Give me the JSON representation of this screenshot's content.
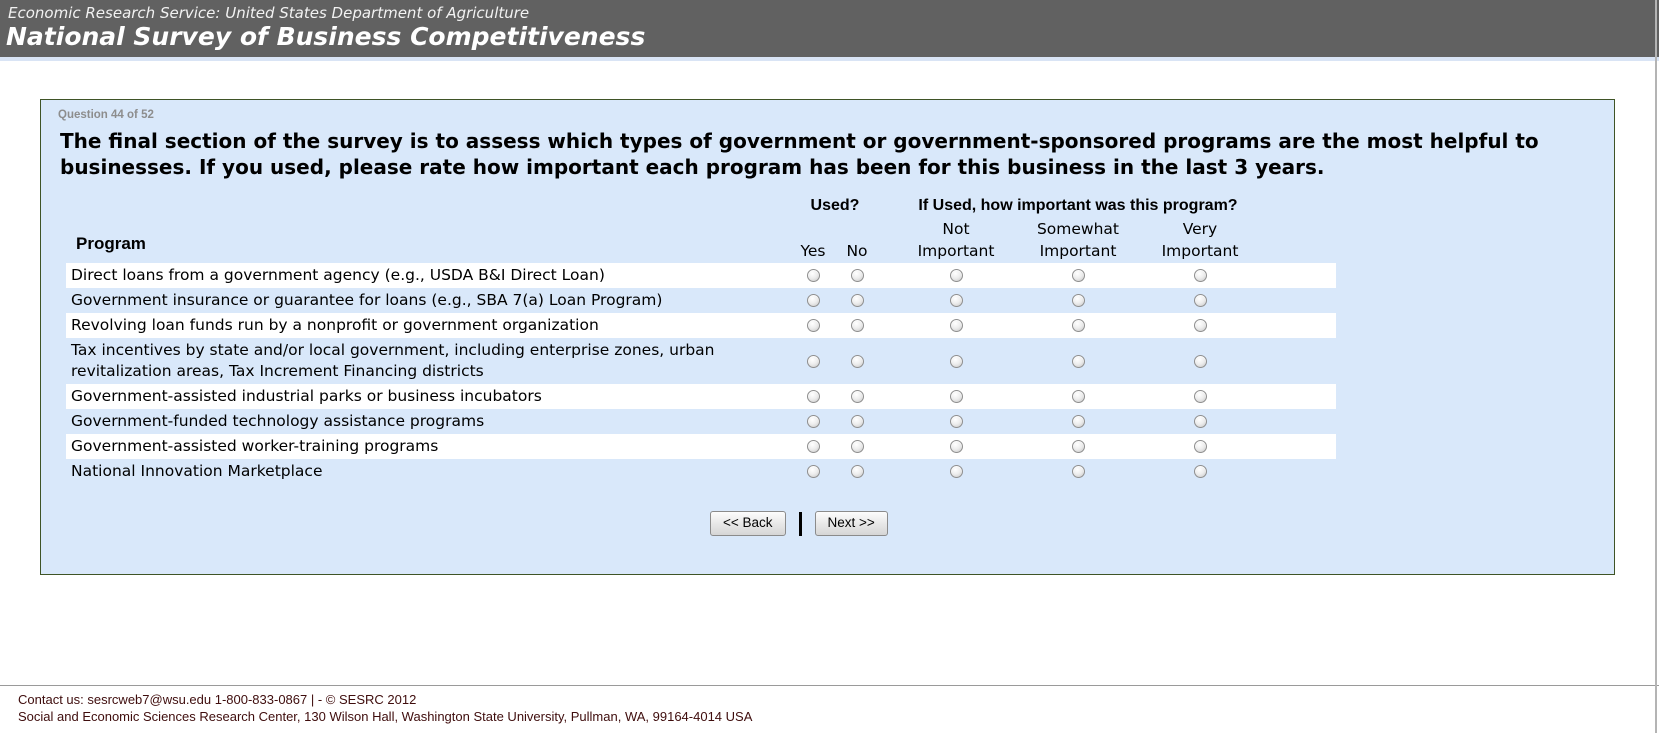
{
  "header": {
    "agency_line": "Economic Research Service: United States Department of Agriculture",
    "title": "National Survey of Business Competitiveness"
  },
  "question": {
    "number_label": "Question 44 of 52",
    "text": "The final section of the survey is to assess which types of government or government-sponsored programs are the most helpful to businesses. If you used, please rate how important each program has been for this business in the last 3 years."
  },
  "table": {
    "program_header": "Program",
    "used_header": "Used?",
    "importance_header": "If Used, how important was this program?",
    "yes_label": "Yes",
    "no_label": "No",
    "importance_options": [
      "Not\nImportant",
      "Somewhat\nImportant",
      "Very\nImportant"
    ],
    "programs": [
      "Direct loans from a government agency (e.g., USDA B&I Direct Loan)",
      "Government insurance or guarantee for loans (e.g., SBA 7(a) Loan Program)",
      "Revolving loan funds run by a nonprofit or government organization",
      "Tax incentives by state and/or local government, including enterprise zones, urban revitalization areas, Tax Increment Financing districts",
      "Government-assisted industrial parks or business incubators",
      "Government-funded technology assistance programs",
      "Government-assisted worker-training programs",
      "National Innovation Marketplace"
    ],
    "radio_states": "all-unselected"
  },
  "nav": {
    "back_label": "<< Back",
    "next_label": "Next >>"
  },
  "footer": {
    "line1": "Contact us: sesrcweb7@wsu.edu 1-800-833-0867 | - © SESRC 2012",
    "line2": "Social and Economic Sciences Research Center, 130 Wilson Hall, Washington State University, Pullman, WA, 99164-4014 USA"
  },
  "colors": {
    "header_bg": "#616161",
    "header_text": "#ffffff",
    "header_strip": "#d9e4f5",
    "panel_bg": "#d9e8fa",
    "panel_border": "#3f5426",
    "row_highlight": "#ffffff",
    "question_label_text": "#8d8d8d",
    "footer_text": "#3f0d0d"
  }
}
